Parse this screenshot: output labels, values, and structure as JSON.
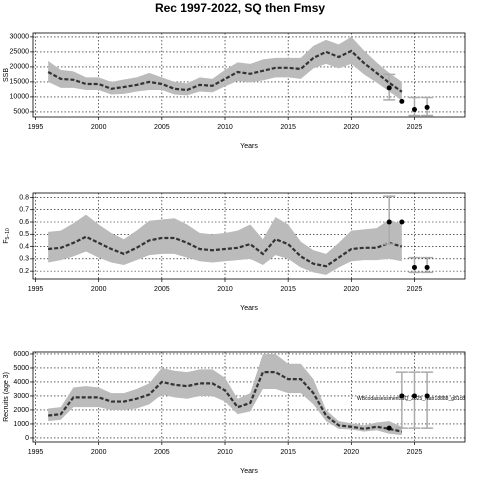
{
  "title": "Rec 1997-2022, SQ then Fmsy",
  "chart_data": [
    {
      "type": "line",
      "xlabel": "Years",
      "ylabel": "SSB",
      "x": [
        1996,
        1997,
        1998,
        1999,
        2000,
        2001,
        2002,
        2003,
        2004,
        2005,
        2006,
        2007,
        2008,
        2009,
        2010,
        2011,
        2012,
        2013,
        2014,
        2015,
        2016,
        2017,
        2018,
        2019,
        2020,
        2021,
        2022,
        2023,
        2024
      ],
      "values": [
        18300,
        16000,
        15700,
        14300,
        14300,
        12700,
        13300,
        14000,
        15000,
        14300,
        12700,
        12300,
        14000,
        13700,
        16000,
        18300,
        17700,
        18700,
        19700,
        19700,
        19300,
        23000,
        25000,
        23300,
        25300,
        21300,
        18000,
        14700,
        11700
      ],
      "band_upper": [
        22000,
        19000,
        18500,
        16500,
        16500,
        15000,
        15800,
        16500,
        18000,
        16500,
        15000,
        14500,
        16500,
        16000,
        19000,
        21500,
        21000,
        22500,
        23000,
        23000,
        23000,
        27000,
        29000,
        27500,
        30000,
        25500,
        21500,
        18000,
        15000
      ],
      "band_lower": [
        15000,
        13000,
        13000,
        12300,
        12300,
        10800,
        11000,
        11800,
        12300,
        12300,
        10800,
        10500,
        11800,
        11500,
        13500,
        15300,
        14800,
        15500,
        16500,
        16500,
        16000,
        19500,
        21000,
        19500,
        21000,
        17500,
        14800,
        11800,
        8800
      ],
      "points": {
        "x": [
          2023,
          2024,
          2025,
          2026
        ],
        "values": [
          13000,
          8500,
          5800,
          6500
        ]
      },
      "error_bars": {
        "x": [
          2023,
          2025,
          2026
        ],
        "lower": [
          9000,
          3800,
          3800
        ],
        "upper": [
          17500,
          9800,
          9800
        ]
      },
      "xlim": [
        1994.8,
        2029
      ],
      "xticks": [
        1995,
        2000,
        2005,
        2010,
        2015,
        2020,
        2025
      ],
      "ylim": [
        3300,
        31300
      ],
      "yticks": [
        5000,
        10000,
        15000,
        20000,
        25000,
        30000
      ],
      "grid": true,
      "line_color": "#333333",
      "band_color": "#bbbbbb",
      "point_color": "#000000",
      "error_color": "#aaaaaa"
    },
    {
      "type": "line",
      "xlabel": "Years",
      "ylabel": "F",
      "ylabel_sub": "5−10",
      "x": [
        1996,
        1997,
        1998,
        1999,
        2000,
        2001,
        2002,
        2003,
        2004,
        2005,
        2006,
        2007,
        2008,
        2009,
        2010,
        2011,
        2012,
        2013,
        2014,
        2015,
        2016,
        2017,
        2018,
        2019,
        2020,
        2021,
        2022,
        2023,
        2024
      ],
      "values": [
        0.38,
        0.39,
        0.43,
        0.48,
        0.43,
        0.38,
        0.34,
        0.39,
        0.45,
        0.47,
        0.47,
        0.43,
        0.38,
        0.37,
        0.38,
        0.39,
        0.42,
        0.34,
        0.46,
        0.42,
        0.32,
        0.26,
        0.24,
        0.31,
        0.38,
        0.39,
        0.39,
        0.43,
        0.4
      ],
      "band_upper": [
        0.52,
        0.53,
        0.59,
        0.66,
        0.58,
        0.51,
        0.46,
        0.53,
        0.61,
        0.62,
        0.63,
        0.58,
        0.51,
        0.5,
        0.51,
        0.53,
        0.58,
        0.46,
        0.64,
        0.58,
        0.44,
        0.37,
        0.34,
        0.43,
        0.53,
        0.54,
        0.55,
        0.62,
        0.58
      ],
      "band_lower": [
        0.27,
        0.29,
        0.32,
        0.36,
        0.31,
        0.27,
        0.25,
        0.29,
        0.33,
        0.34,
        0.34,
        0.31,
        0.28,
        0.27,
        0.28,
        0.29,
        0.3,
        0.25,
        0.33,
        0.3,
        0.23,
        0.19,
        0.17,
        0.23,
        0.28,
        0.29,
        0.29,
        0.3,
        0.28
      ],
      "points": {
        "x": [
          2023,
          2024,
          2025,
          2026
        ],
        "values": [
          0.6,
          0.6,
          0.23,
          0.23
        ]
      },
      "error_bars": {
        "x": [
          2023,
          2025,
          2026
        ],
        "lower": [
          0.42,
          0.19,
          0.19
        ],
        "upper": [
          0.81,
          0.31,
          0.31
        ]
      },
      "xlim": [
        1994.8,
        2029
      ],
      "xticks": [
        1995,
        2000,
        2005,
        2010,
        2015,
        2020,
        2025
      ],
      "ylim": [
        0.136,
        0.836
      ],
      "yticks": [
        0.2,
        0.3,
        0.4,
        0.5,
        0.6,
        0.7,
        0.8
      ],
      "grid": true,
      "line_color": "#333333",
      "band_color": "#bbbbbb",
      "point_color": "#000000",
      "error_color": "#aaaaaa"
    },
    {
      "type": "line",
      "xlabel": "Years",
      "ylabel": "Recruits (age 3)",
      "x": [
        1996,
        1997,
        1998,
        1999,
        2000,
        2001,
        2002,
        2003,
        2004,
        2005,
        2006,
        2007,
        2008,
        2009,
        2010,
        2011,
        2012,
        2013,
        2014,
        2015,
        2016,
        2017,
        2018,
        2019,
        2020,
        2021,
        2022,
        2023,
        2024
      ],
      "values": [
        1600,
        1700,
        2900,
        2900,
        2900,
        2600,
        2600,
        2800,
        3100,
        4000,
        3800,
        3700,
        3900,
        3900,
        3400,
        2200,
        2500,
        4700,
        4700,
        4200,
        4200,
        3200,
        1600,
        900,
        800,
        650,
        800,
        650,
        450
      ],
      "band_upper": [
        2100,
        2200,
        3600,
        3700,
        3600,
        3200,
        3200,
        3500,
        3900,
        5000,
        4800,
        4700,
        4900,
        4900,
        4300,
        2800,
        3200,
        6000,
        6000,
        5300,
        5300,
        4200,
        2000,
        1200,
        1050,
        900,
        1100,
        1200,
        800
      ],
      "band_lower": [
        1200,
        1300,
        2200,
        2200,
        2200,
        2000,
        2000,
        2100,
        2400,
        3100,
        2900,
        2800,
        3000,
        3000,
        2600,
        1700,
        1900,
        3500,
        3500,
        3200,
        3200,
        2400,
        1200,
        650,
        600,
        450,
        550,
        300,
        200
      ],
      "points": {
        "x": [
          2023,
          2024,
          2025,
          2026
        ],
        "values": [
          700,
          3000,
          3000,
          3000
        ]
      },
      "error_bars": {
        "x": [
          2024,
          2025,
          2026
        ],
        "lower": [
          700,
          700,
          700
        ],
        "upper": [
          4700,
          4700,
          4700
        ]
      },
      "annotation": "WBcodassessment/SQ_2025_Natr18888_g81c8",
      "xlim": [
        1994.8,
        2029
      ],
      "xticks": [
        1995,
        2000,
        2005,
        2010,
        2015,
        2020,
        2025
      ],
      "ylim": [
        -290,
        6140
      ],
      "yticks": [
        0,
        1000,
        2000,
        3000,
        4000,
        5000,
        6000
      ],
      "grid": true,
      "line_color": "#333333",
      "band_color": "#bbbbbb",
      "point_color": "#000000",
      "error_color": "#aaaaaa"
    }
  ]
}
